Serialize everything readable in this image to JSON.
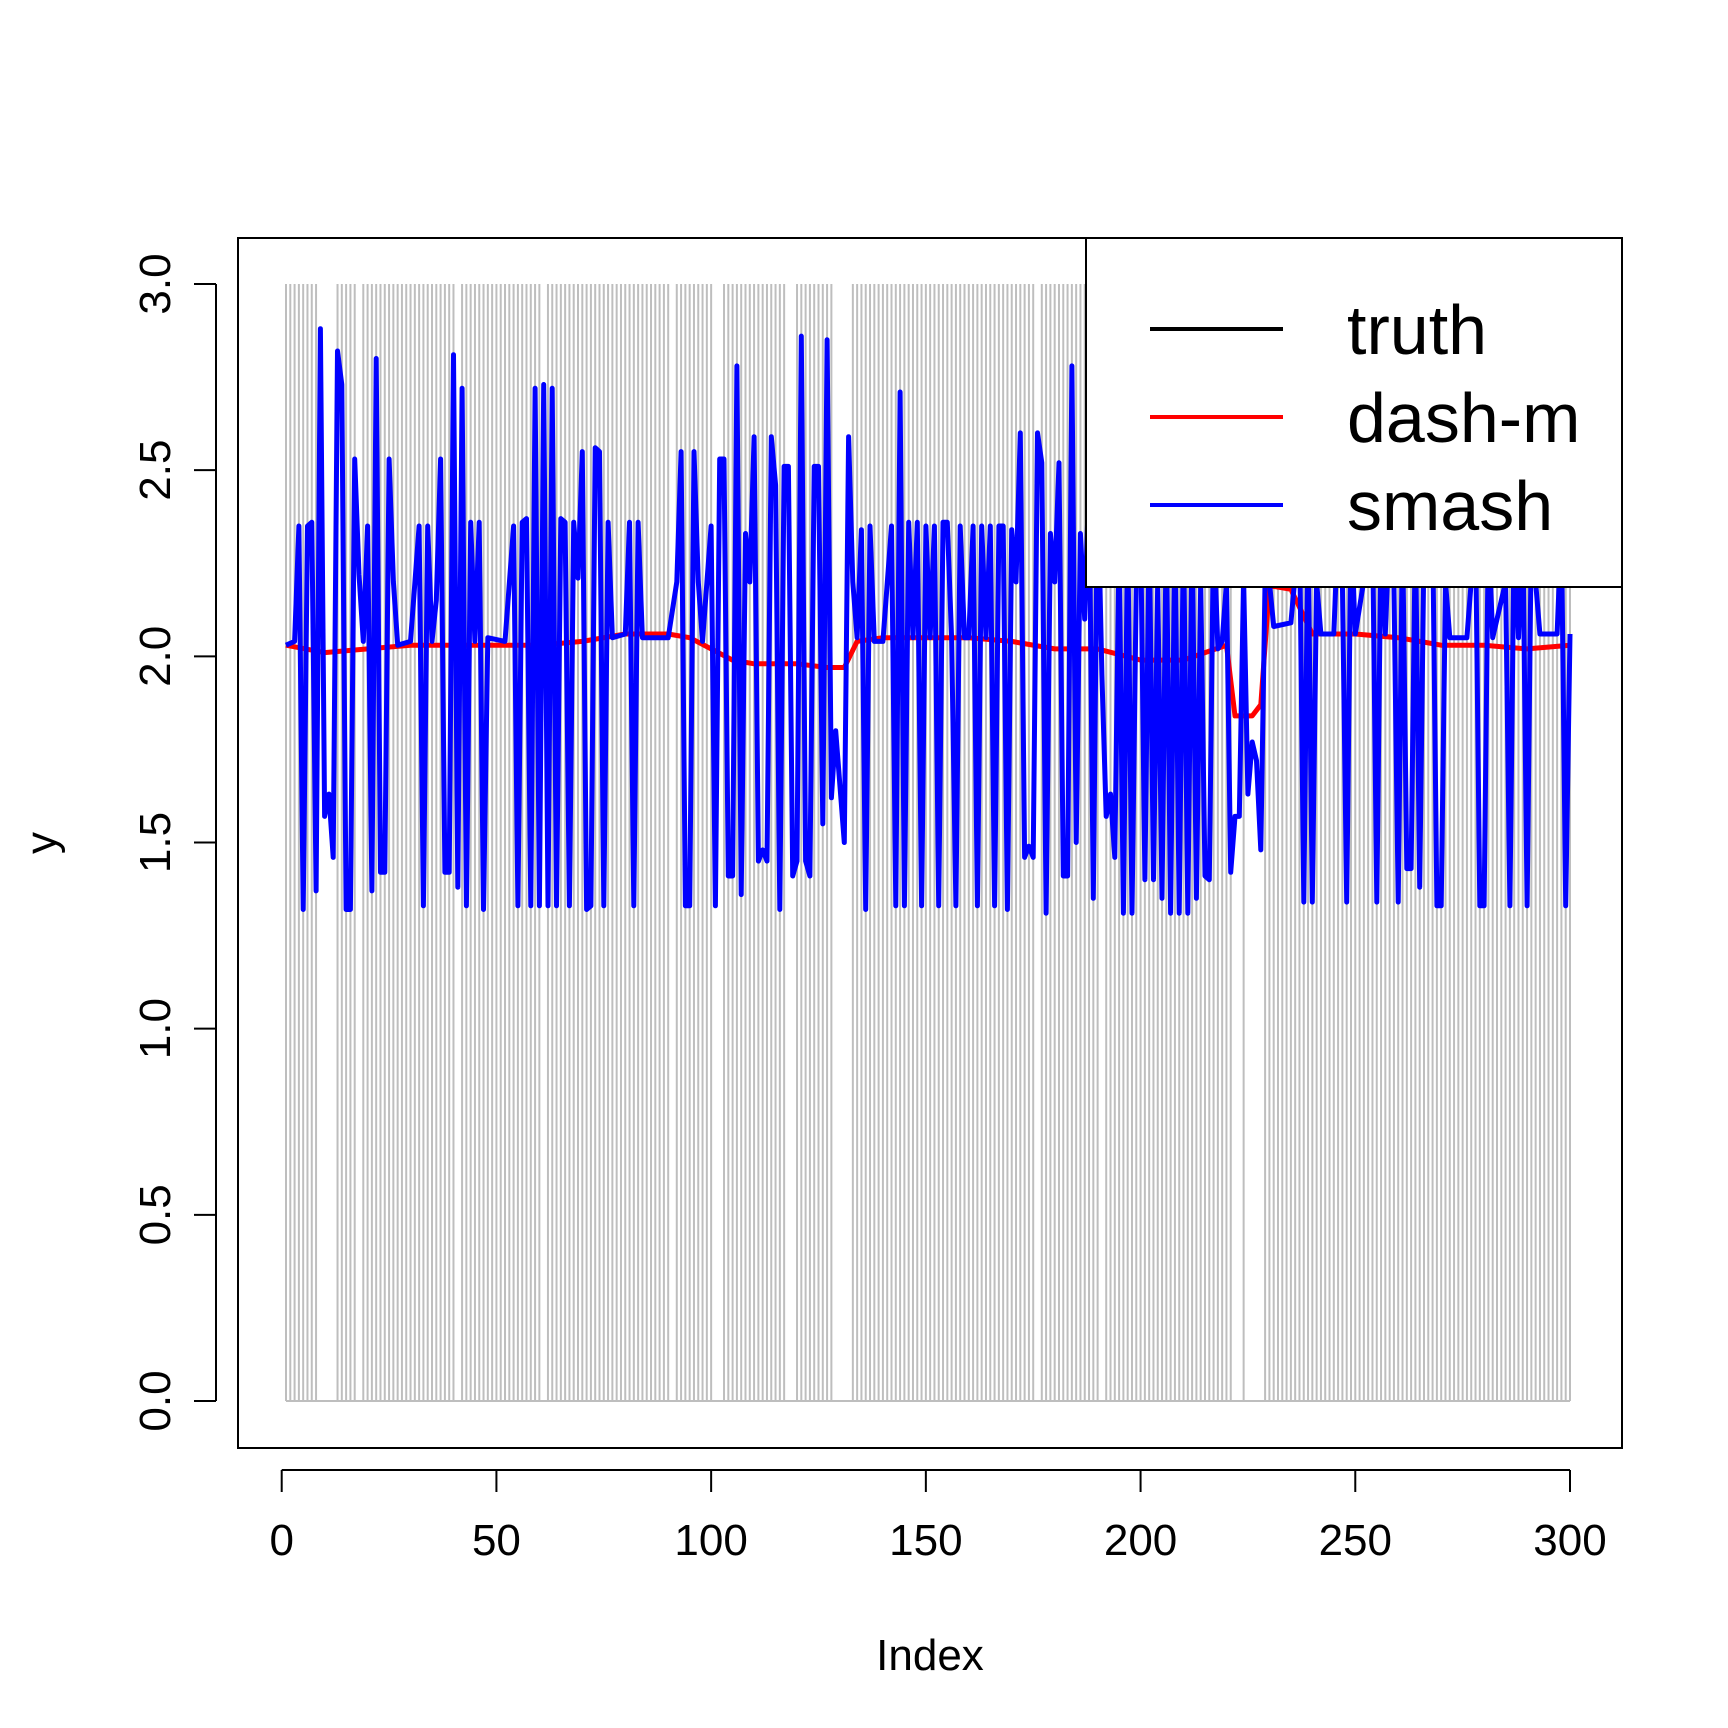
{
  "chart_data": {
    "type": "line",
    "title": "",
    "xlabel": "Index",
    "ylabel": "y",
    "xlim": [
      1,
      300
    ],
    "ylim": [
      0,
      3
    ],
    "grid": false,
    "legend_position": "top-right",
    "x_ticks": [
      "0",
      "50",
      "100",
      "150",
      "200",
      "250",
      "300"
    ],
    "y_ticks": [
      "0.0",
      "0.5",
      "1.0",
      "1.5",
      "2.0",
      "2.5",
      "3.0"
    ],
    "x_tick_values": [
      0,
      50,
      100,
      150,
      200,
      250,
      300
    ],
    "y_tick_values": [
      0,
      0.5,
      1.0,
      1.5,
      2.0,
      2.5,
      3.0
    ],
    "background_counts": {
      "description_color": "#bebebe",
      "value_when_present": 3,
      "present_index_ranges": [
        [
          1,
          8
        ],
        [
          13,
          17
        ],
        [
          19,
          40
        ],
        [
          42,
          60
        ],
        [
          62,
          90
        ],
        [
          92,
          100
        ],
        [
          103,
          117
        ],
        [
          120,
          128
        ],
        [
          133,
          175
        ],
        [
          177,
          190
        ],
        [
          192,
          221
        ],
        [
          224,
          224
        ],
        [
          229,
          300
        ]
      ]
    },
    "series": [
      {
        "name": "truth",
        "color": "#000000",
        "values": []
      },
      {
        "name": "dash-m",
        "color": "#ff0000",
        "points": [
          [
            1,
            2.03
          ],
          [
            10,
            2.01
          ],
          [
            20,
            2.02
          ],
          [
            30,
            2.03
          ],
          [
            40,
            2.03
          ],
          [
            50,
            2.03
          ],
          [
            60,
            2.03
          ],
          [
            70,
            2.04
          ],
          [
            80,
            2.06
          ],
          [
            90,
            2.06
          ],
          [
            95,
            2.05
          ],
          [
            100,
            2.02
          ],
          [
            105,
            1.99
          ],
          [
            110,
            1.98
          ],
          [
            120,
            1.98
          ],
          [
            127,
            1.97
          ],
          [
            131,
            1.97
          ],
          [
            134,
            2.04
          ],
          [
            140,
            2.05
          ],
          [
            150,
            2.05
          ],
          [
            160,
            2.05
          ],
          [
            170,
            2.04
          ],
          [
            180,
            2.02
          ],
          [
            190,
            2.02
          ],
          [
            200,
            1.99
          ],
          [
            210,
            1.99
          ],
          [
            215,
            2.01
          ],
          [
            220,
            2.03
          ],
          [
            222,
            1.84
          ],
          [
            226,
            1.84
          ],
          [
            228,
            1.87
          ],
          [
            230,
            2.19
          ],
          [
            235,
            2.18
          ],
          [
            240,
            2.06
          ],
          [
            250,
            2.06
          ],
          [
            260,
            2.05
          ],
          [
            265,
            2.04
          ],
          [
            270,
            2.03
          ],
          [
            280,
            2.03
          ],
          [
            290,
            2.02
          ],
          [
            300,
            2.03
          ]
        ]
      },
      {
        "name": "smash",
        "color": "#0000ff",
        "points": [
          [
            1,
            2.03
          ],
          [
            3,
            2.04
          ],
          [
            4,
            2.35
          ],
          [
            5,
            1.32
          ],
          [
            6,
            2.35
          ],
          [
            7,
            2.36
          ],
          [
            8,
            1.37
          ],
          [
            9,
            2.88
          ],
          [
            10,
            1.57
          ],
          [
            11,
            1.63
          ],
          [
            12,
            1.46
          ],
          [
            13,
            2.82
          ],
          [
            14,
            2.73
          ],
          [
            15,
            1.32
          ],
          [
            16,
            1.32
          ],
          [
            17,
            2.53
          ],
          [
            18,
            2.22
          ],
          [
            19,
            2.04
          ],
          [
            20,
            2.35
          ],
          [
            21,
            1.37
          ],
          [
            22,
            2.8
          ],
          [
            23,
            1.42
          ],
          [
            24,
            1.42
          ],
          [
            25,
            2.53
          ],
          [
            26,
            2.2
          ],
          [
            27,
            2.03
          ],
          [
            30,
            2.04
          ],
          [
            32,
            2.35
          ],
          [
            33,
            1.33
          ],
          [
            34,
            2.35
          ],
          [
            35,
            2.04
          ],
          [
            36,
            2.15
          ],
          [
            37,
            2.53
          ],
          [
            38,
            1.42
          ],
          [
            39,
            1.42
          ],
          [
            40,
            2.81
          ],
          [
            41,
            1.38
          ],
          [
            42,
            2.72
          ],
          [
            43,
            1.33
          ],
          [
            44,
            2.36
          ],
          [
            45,
            2.04
          ],
          [
            46,
            2.36
          ],
          [
            47,
            1.32
          ],
          [
            48,
            2.05
          ],
          [
            52,
            2.04
          ],
          [
            54,
            2.35
          ],
          [
            55,
            1.33
          ],
          [
            56,
            2.36
          ],
          [
            57,
            2.37
          ],
          [
            58,
            1.33
          ],
          [
            59,
            2.72
          ],
          [
            60,
            1.33
          ],
          [
            61,
            2.73
          ],
          [
            62,
            1.33
          ],
          [
            63,
            2.72
          ],
          [
            64,
            1.33
          ],
          [
            65,
            2.37
          ],
          [
            66,
            2.36
          ],
          [
            67,
            1.33
          ],
          [
            68,
            2.36
          ],
          [
            69,
            2.21
          ],
          [
            70,
            2.55
          ],
          [
            71,
            1.32
          ],
          [
            72,
            1.33
          ],
          [
            73,
            2.56
          ],
          [
            74,
            2.55
          ],
          [
            75,
            1.33
          ],
          [
            76,
            2.36
          ],
          [
            77,
            2.05
          ],
          [
            80,
            2.06
          ],
          [
            81,
            2.36
          ],
          [
            82,
            1.33
          ],
          [
            83,
            2.36
          ],
          [
            84,
            2.05
          ],
          [
            90,
            2.05
          ],
          [
            92,
            2.2
          ],
          [
            93,
            2.55
          ],
          [
            94,
            1.33
          ],
          [
            95,
            1.33
          ],
          [
            96,
            2.55
          ],
          [
            97,
            2.2
          ],
          [
            98,
            2.04
          ],
          [
            100,
            2.35
          ],
          [
            101,
            1.33
          ],
          [
            102,
            2.53
          ],
          [
            103,
            2.53
          ],
          [
            104,
            1.41
          ],
          [
            105,
            1.41
          ],
          [
            106,
            2.78
          ],
          [
            107,
            1.36
          ],
          [
            108,
            2.33
          ],
          [
            109,
            2.2
          ],
          [
            110,
            2.59
          ],
          [
            111,
            1.45
          ],
          [
            112,
            1.48
          ],
          [
            113,
            1.45
          ],
          [
            114,
            2.59
          ],
          [
            115,
            2.46
          ],
          [
            116,
            1.32
          ],
          [
            117,
            2.51
          ],
          [
            118,
            2.51
          ],
          [
            119,
            1.41
          ],
          [
            120,
            1.45
          ],
          [
            121,
            2.86
          ],
          [
            122,
            1.45
          ],
          [
            123,
            1.41
          ],
          [
            124,
            2.51
          ],
          [
            125,
            2.51
          ],
          [
            126,
            1.55
          ],
          [
            127,
            2.85
          ],
          [
            128,
            1.62
          ],
          [
            129,
            1.8
          ],
          [
            130,
            1.65
          ],
          [
            131,
            1.5
          ],
          [
            132,
            2.59
          ],
          [
            133,
            2.2
          ],
          [
            134,
            2.05
          ],
          [
            135,
            2.34
          ],
          [
            136,
            1.32
          ],
          [
            137,
            2.35
          ],
          [
            138,
            2.04
          ],
          [
            140,
            2.04
          ],
          [
            142,
            2.35
          ],
          [
            143,
            1.33
          ],
          [
            144,
            2.71
          ],
          [
            145,
            1.33
          ],
          [
            146,
            2.36
          ],
          [
            147,
            2.05
          ],
          [
            148,
            2.36
          ],
          [
            149,
            1.33
          ],
          [
            150,
            2.35
          ],
          [
            151,
            2.05
          ],
          [
            152,
            2.35
          ],
          [
            153,
            1.33
          ],
          [
            154,
            2.36
          ],
          [
            155,
            2.36
          ],
          [
            156,
            2.05
          ],
          [
            157,
            1.33
          ],
          [
            158,
            2.35
          ],
          [
            159,
            2.05
          ],
          [
            160,
            2.05
          ],
          [
            161,
            2.35
          ],
          [
            162,
            1.33
          ],
          [
            163,
            2.35
          ],
          [
            164,
            2.05
          ],
          [
            165,
            2.35
          ],
          [
            166,
            1.33
          ],
          [
            167,
            2.35
          ],
          [
            168,
            2.35
          ],
          [
            169,
            1.32
          ],
          [
            170,
            2.34
          ],
          [
            171,
            2.2
          ],
          [
            172,
            2.6
          ],
          [
            173,
            1.46
          ],
          [
            174,
            1.49
          ],
          [
            175,
            1.46
          ],
          [
            176,
            2.6
          ],
          [
            177,
            2.52
          ],
          [
            178,
            1.31
          ],
          [
            179,
            2.33
          ],
          [
            180,
            2.2
          ],
          [
            181,
            2.52
          ],
          [
            182,
            1.41
          ],
          [
            183,
            1.41
          ],
          [
            184,
            2.78
          ],
          [
            185,
            1.5
          ],
          [
            186,
            2.33
          ],
          [
            187,
            2.1
          ],
          [
            188,
            2.49
          ],
          [
            189,
            1.35
          ],
          [
            190,
            2.48
          ],
          [
            191,
            1.95
          ],
          [
            192,
            1.57
          ],
          [
            193,
            1.63
          ],
          [
            194,
            1.46
          ],
          [
            195,
            2.3
          ],
          [
            196,
            1.31
          ],
          [
            197,
            2.35
          ],
          [
            198,
            1.31
          ],
          [
            199,
            2.2
          ],
          [
            200,
            2.35
          ],
          [
            201,
            1.4
          ],
          [
            202,
            2.35
          ],
          [
            203,
            1.4
          ],
          [
            204,
            2.2
          ],
          [
            205,
            1.35
          ],
          [
            206,
            2.35
          ],
          [
            207,
            1.31
          ],
          [
            208,
            2.35
          ],
          [
            209,
            1.31
          ],
          [
            210,
            2.35
          ],
          [
            211,
            1.31
          ],
          [
            212,
            2.35
          ],
          [
            213,
            1.35
          ],
          [
            214,
            2.2
          ],
          [
            215,
            1.41
          ],
          [
            216,
            1.4
          ],
          [
            217,
            2.35
          ],
          [
            218,
            2.02
          ],
          [
            219,
            2.04
          ],
          [
            220,
            2.2
          ],
          [
            221,
            1.42
          ],
          [
            222,
            1.57
          ],
          [
            223,
            1.57
          ],
          [
            224,
            2.21
          ],
          [
            225,
            1.63
          ],
          [
            226,
            1.77
          ],
          [
            227,
            1.72
          ],
          [
            228,
            1.48
          ],
          [
            229,
            2.21
          ],
          [
            230,
            2.2
          ],
          [
            231,
            2.08
          ],
          [
            235,
            2.09
          ],
          [
            237,
            2.35
          ],
          [
            238,
            1.34
          ],
          [
            239,
            2.35
          ],
          [
            240,
            1.34
          ],
          [
            241,
            2.2
          ],
          [
            242,
            2.06
          ],
          [
            245,
            2.06
          ],
          [
            246,
            2.35
          ],
          [
            247,
            2.2
          ],
          [
            248,
            1.34
          ],
          [
            249,
            2.35
          ],
          [
            250,
            2.06
          ],
          [
            254,
            2.35
          ],
          [
            255,
            1.34
          ],
          [
            256,
            2.35
          ],
          [
            257,
            2.06
          ],
          [
            258,
            2.35
          ],
          [
            259,
            2.2
          ],
          [
            260,
            1.34
          ],
          [
            261,
            2.35
          ],
          [
            262,
            1.43
          ],
          [
            263,
            1.43
          ],
          [
            264,
            2.35
          ],
          [
            265,
            1.38
          ],
          [
            266,
            2.3
          ],
          [
            267,
            2.2
          ],
          [
            268,
            2.35
          ],
          [
            269,
            1.33
          ],
          [
            270,
            1.33
          ],
          [
            271,
            2.2
          ],
          [
            272,
            2.05
          ],
          [
            276,
            2.05
          ],
          [
            278,
            2.35
          ],
          [
            279,
            1.33
          ],
          [
            280,
            1.33
          ],
          [
            281,
            2.35
          ],
          [
            282,
            2.05
          ],
          [
            285,
            2.2
          ],
          [
            286,
            1.33
          ],
          [
            287,
            2.35
          ],
          [
            288,
            2.05
          ],
          [
            289,
            2.35
          ],
          [
            290,
            1.33
          ],
          [
            291,
            2.35
          ],
          [
            292,
            2.2
          ],
          [
            293,
            2.06
          ],
          [
            297,
            2.06
          ],
          [
            298,
            2.35
          ],
          [
            299,
            1.33
          ],
          [
            300,
            2.06
          ]
        ]
      }
    ]
  }
}
